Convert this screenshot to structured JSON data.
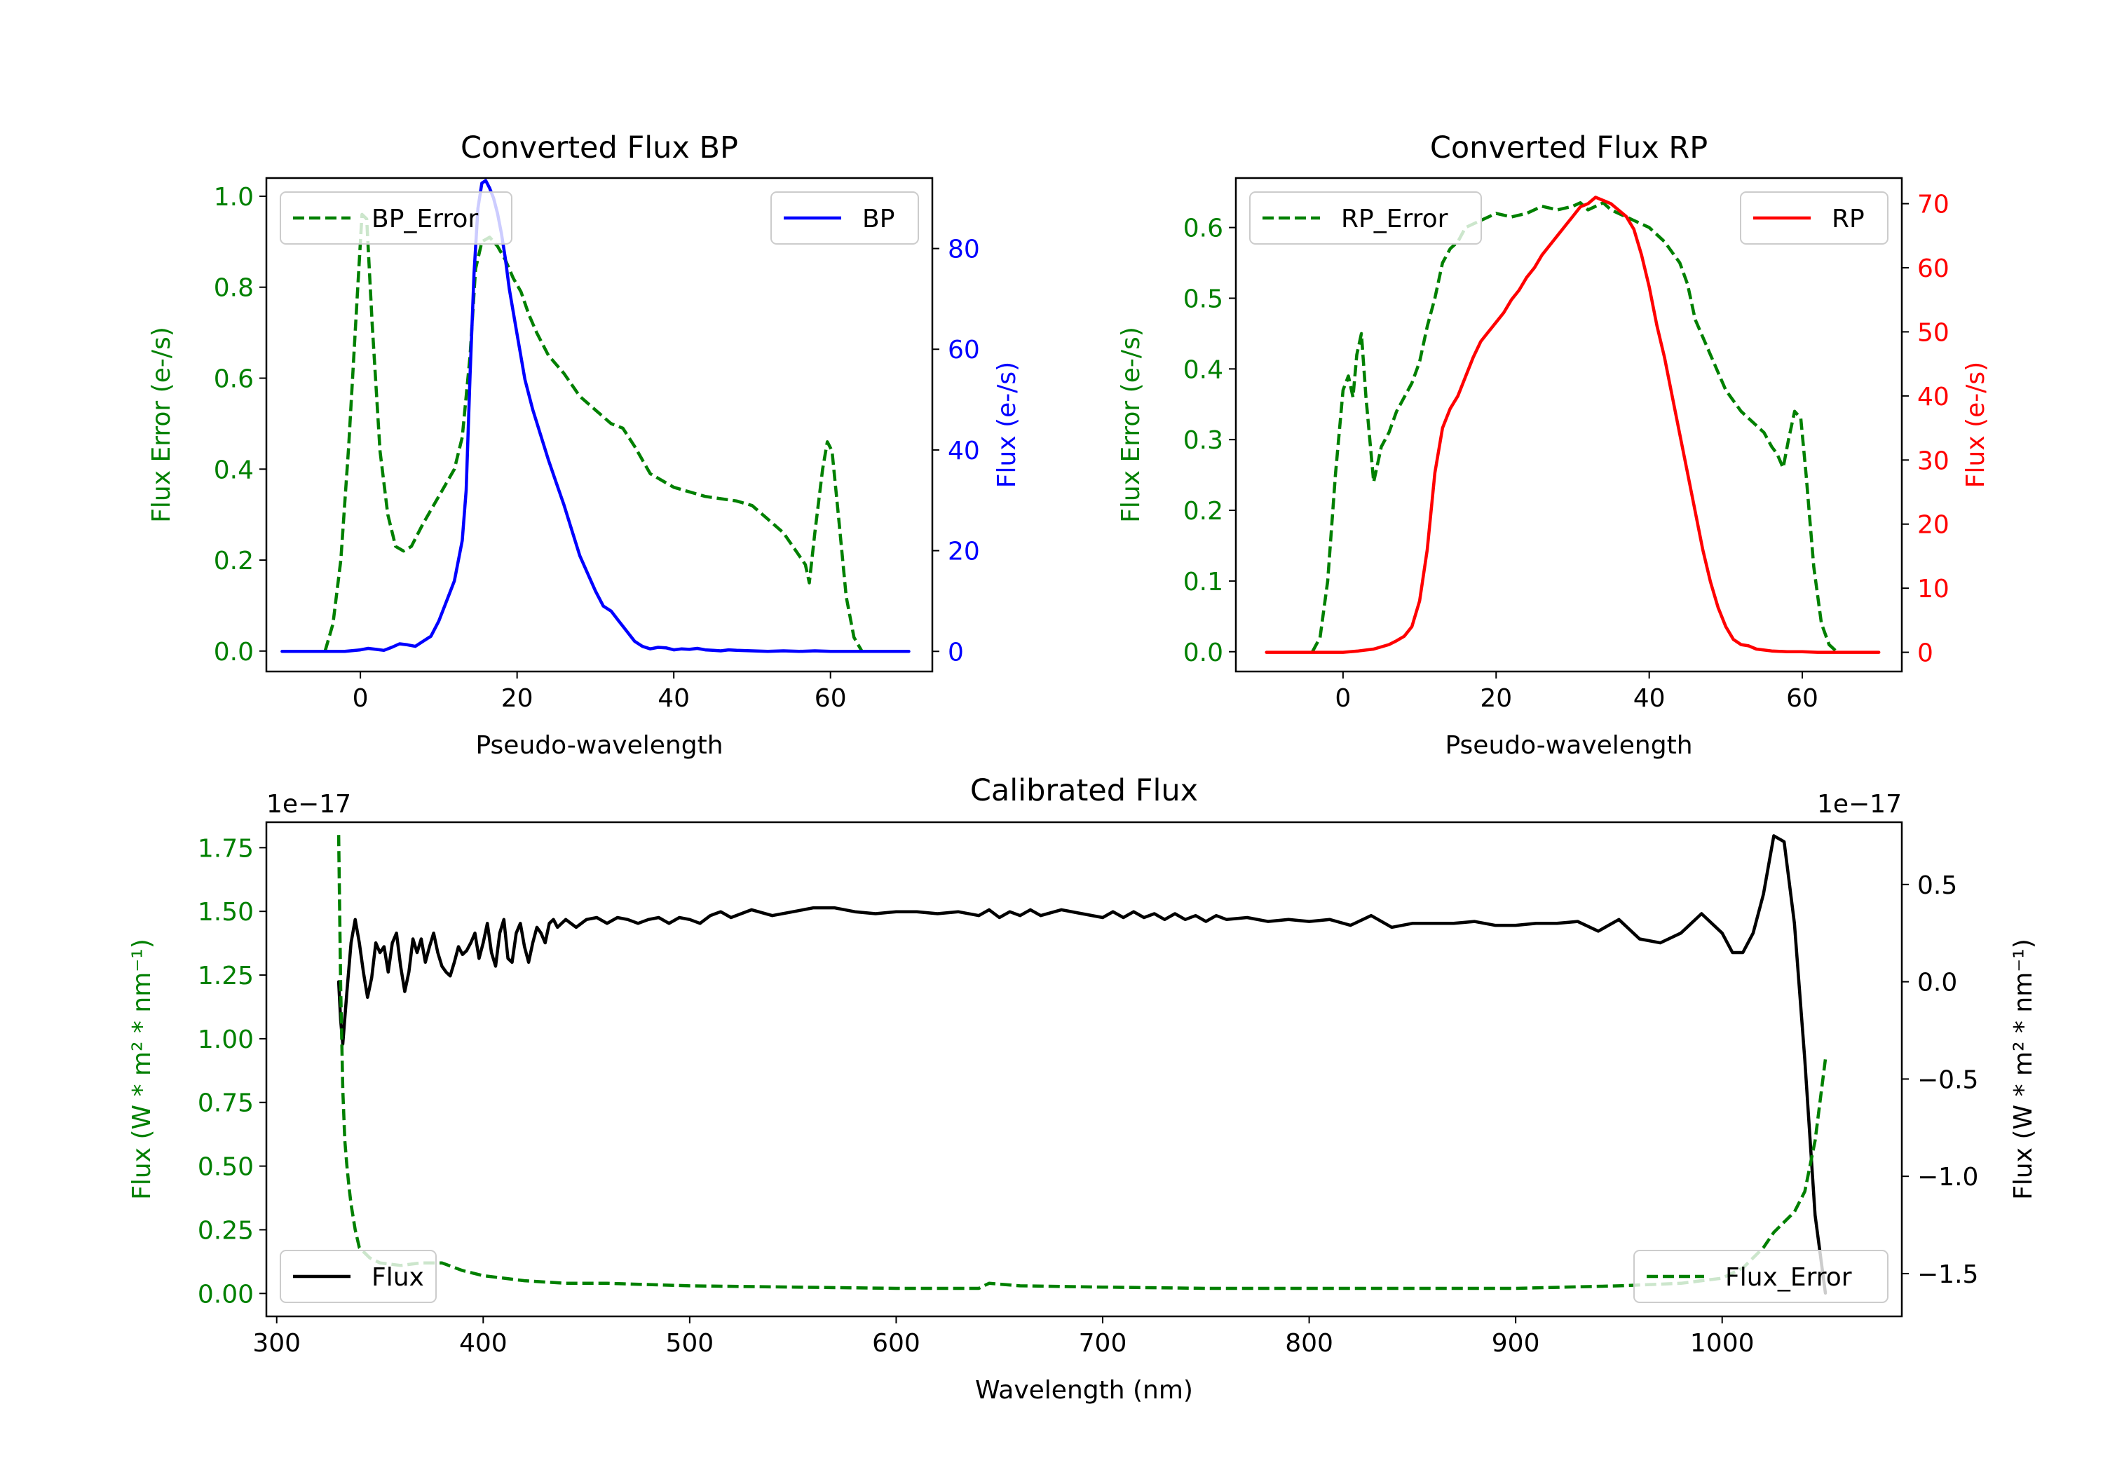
{
  "colors": {
    "green": "#008000",
    "blue": "#0000ff",
    "red": "#ff0000",
    "black": "#000000"
  },
  "chart_data": [
    {
      "type": "line",
      "title": "Converted Flux BP",
      "xlabel": "Pseudo-wavelength",
      "xlim": [
        -12,
        73
      ],
      "x_ticks": [
        0,
        20,
        40,
        60
      ],
      "left_axis": {
        "label": "Flux Error (e-/s)",
        "color": "#008000",
        "ylim": [
          -0.045,
          1.04
        ],
        "ticks": [
          "0.0",
          "0.2",
          "0.4",
          "0.6",
          "0.8",
          "1.0"
        ]
      },
      "right_axis": {
        "label": "Flux (e-/s)",
        "color": "#0000ff",
        "ylim": [
          -4,
          94
        ],
        "ticks": [
          "0",
          "20",
          "40",
          "60",
          "80"
        ]
      },
      "series": [
        {
          "name": "BP_Error",
          "axis": "left",
          "style": "dashed",
          "color": "#008000",
          "x": [
            -4.5,
            -3.5,
            -2.5,
            -1.5,
            -0.5,
            0.2,
            0.8,
            1.5,
            2.5,
            3.5,
            4.5,
            5.5,
            6.5,
            8,
            10,
            12,
            13,
            14,
            14.7,
            15.5,
            16.5,
            17.5,
            18.5,
            19.5,
            20.5,
            21.5,
            22.5,
            24,
            26,
            28,
            30,
            32,
            33.5,
            35,
            37,
            40,
            44,
            48,
            50,
            52,
            54,
            56,
            56.8,
            57.3,
            58,
            59,
            59.6,
            60.2,
            61,
            62,
            63,
            64
          ],
          "values": [
            0.0,
            0.06,
            0.2,
            0.45,
            0.75,
            0.96,
            0.95,
            0.72,
            0.44,
            0.3,
            0.23,
            0.22,
            0.23,
            0.28,
            0.34,
            0.4,
            0.47,
            0.65,
            0.84,
            0.9,
            0.91,
            0.89,
            0.86,
            0.82,
            0.79,
            0.74,
            0.7,
            0.65,
            0.61,
            0.56,
            0.53,
            0.5,
            0.49,
            0.45,
            0.39,
            0.36,
            0.34,
            0.33,
            0.32,
            0.29,
            0.26,
            0.21,
            0.19,
            0.15,
            0.26,
            0.4,
            0.46,
            0.44,
            0.3,
            0.12,
            0.03,
            0.0
          ]
        },
        {
          "name": "BP",
          "axis": "right",
          "style": "solid",
          "color": "#0000ff",
          "x": [
            -10,
            -5,
            -2,
            0,
            1,
            2,
            3,
            4,
            5,
            6,
            7,
            8,
            9,
            10,
            11,
            12,
            13,
            13.5,
            14,
            14.5,
            15,
            15.5,
            16,
            16.5,
            17,
            17.5,
            18,
            18.5,
            19,
            20,
            21,
            22,
            23,
            24,
            25,
            26,
            27,
            28,
            29,
            30,
            31,
            32,
            33,
            34,
            35,
            36,
            37,
            38,
            39,
            40,
            41,
            42,
            43,
            44,
            45,
            46,
            47,
            48,
            50,
            52,
            54,
            56,
            58,
            60,
            62,
            65,
            70
          ],
          "values": [
            0,
            0,
            0,
            0.3,
            0.6,
            0.4,
            0.2,
            0.8,
            1.5,
            1.3,
            1.0,
            2.0,
            3.0,
            6.0,
            10.0,
            14.0,
            22.0,
            32.0,
            55.0,
            75.0,
            88.0,
            93.0,
            93.5,
            92.0,
            90.0,
            87.0,
            83.0,
            78.0,
            72.0,
            63.0,
            54.0,
            48.0,
            43.0,
            38.0,
            33.5,
            29.0,
            24.0,
            19.0,
            15.5,
            12.0,
            9.0,
            8.0,
            6.0,
            4.0,
            2.0,
            1.0,
            0.5,
            0.8,
            0.7,
            0.3,
            0.5,
            0.4,
            0.6,
            0.3,
            0.2,
            0.1,
            0.3,
            0.2,
            0.1,
            0,
            0.1,
            0,
            0.1,
            0,
            0,
            0,
            0
          ]
        }
      ],
      "legends": [
        {
          "label": "BP_Error",
          "position": "upper left"
        },
        {
          "label": "BP",
          "position": "upper right"
        }
      ]
    },
    {
      "type": "line",
      "title": "Converted Flux RP",
      "xlabel": "Pseudo-wavelength",
      "xlim": [
        -14,
        73
      ],
      "x_ticks": [
        0,
        20,
        40,
        60
      ],
      "left_axis": {
        "label": "Flux Error (e-/s)",
        "color": "#008000",
        "ylim": [
          -0.028,
          0.67
        ],
        "ticks": [
          "0.0",
          "0.1",
          "0.2",
          "0.3",
          "0.4",
          "0.5",
          "0.6"
        ]
      },
      "right_axis": {
        "label": "Flux (e-/s)",
        "color": "#ff0000",
        "ylim": [
          -3,
          74
        ],
        "ticks": [
          "0",
          "10",
          "20",
          "30",
          "40",
          "50",
          "60",
          "70"
        ]
      },
      "series": [
        {
          "name": "RP_Error",
          "axis": "right_style_placeholder",
          "style": "dashed",
          "color": "#008000",
          "x": [
            -4,
            -3,
            -2,
            -1,
            0,
            0.7,
            1.3,
            1.8,
            2.4,
            3.0,
            3.5,
            4.0,
            5,
            6,
            7,
            8,
            9,
            10,
            11,
            12,
            13,
            14,
            15,
            16,
            18,
            20,
            22,
            24,
            26,
            28,
            30,
            31,
            32,
            33,
            34,
            35,
            36,
            38,
            40,
            42,
            44,
            45,
            46,
            48,
            50,
            52,
            54,
            55,
            56,
            56.7,
            57.5,
            58.2,
            59,
            59.8,
            60.5,
            61.5,
            62.5,
            63.5,
            64.5
          ],
          "values": [
            0.0,
            0.02,
            0.1,
            0.25,
            0.37,
            0.39,
            0.36,
            0.42,
            0.45,
            0.36,
            0.3,
            0.24,
            0.29,
            0.31,
            0.34,
            0.36,
            0.38,
            0.41,
            0.46,
            0.5,
            0.55,
            0.57,
            0.58,
            0.6,
            0.61,
            0.62,
            0.615,
            0.62,
            0.63,
            0.625,
            0.63,
            0.635,
            0.625,
            0.63,
            0.635,
            0.625,
            0.62,
            0.61,
            0.6,
            0.58,
            0.55,
            0.52,
            0.47,
            0.42,
            0.37,
            0.34,
            0.32,
            0.31,
            0.29,
            0.28,
            0.26,
            0.3,
            0.34,
            0.33,
            0.25,
            0.12,
            0.04,
            0.01,
            0.0
          ]
        },
        {
          "name": "RP",
          "axis": "right",
          "style": "solid",
          "color": "#ff0000",
          "x": [
            -10,
            -5,
            -2,
            0,
            2,
            4,
            6,
            7,
            8,
            9,
            10,
            11,
            12,
            13,
            14,
            15,
            16,
            17,
            18,
            19,
            20,
            21,
            22,
            23,
            24,
            25,
            26,
            27,
            28,
            29,
            30,
            31,
            32,
            33,
            34,
            35,
            36,
            37,
            38,
            39,
            40,
            41,
            42,
            43,
            44,
            45,
            46,
            47,
            48,
            49,
            50,
            51,
            52,
            53,
            54,
            56,
            58,
            60,
            62,
            65,
            70
          ],
          "values": [
            0,
            0,
            0,
            0,
            0.2,
            0.5,
            1.2,
            1.8,
            2.5,
            4.0,
            8.0,
            16.0,
            28.0,
            35.0,
            38.0,
            40.0,
            43.0,
            46.0,
            48.5,
            50.0,
            51.5,
            53.0,
            55.0,
            56.5,
            58.5,
            60.0,
            62.0,
            63.5,
            65.0,
            66.5,
            68.0,
            69.5,
            70.0,
            71.0,
            70.5,
            70.0,
            69.0,
            68.0,
            66.0,
            62.0,
            57.0,
            51.0,
            46.0,
            40.0,
            34.0,
            28.0,
            22.0,
            16.0,
            11.0,
            7.0,
            4.0,
            2.0,
            1.2,
            1.0,
            0.5,
            0.2,
            0.1,
            0.1,
            0,
            0,
            0
          ]
        }
      ],
      "legends": [
        {
          "label": "RP_Error",
          "position": "upper left"
        },
        {
          "label": "RP",
          "position": "upper right"
        }
      ]
    },
    {
      "type": "line",
      "title": "Calibrated Flux",
      "xlabel": "Wavelength (nm)",
      "xlim": [
        295,
        1087
      ],
      "x_ticks": [
        300,
        400,
        500,
        600,
        700,
        800,
        900,
        1000
      ],
      "left_axis": {
        "label": "Flux (W * m² * nm⁻¹)",
        "color": "#008000",
        "ylim": [
          -0.09,
          1.85
        ],
        "ticks": [
          "0.00",
          "0.25",
          "0.50",
          "0.75",
          "1.00",
          "1.25",
          "1.50",
          "1.75"
        ],
        "offset_text": "1e−17"
      },
      "right_axis": {
        "label": "Flux (W * m² * nm⁻¹)",
        "color": "#000000",
        "ylim": [
          -1.72,
          0.82
        ],
        "ticks": [
          "−1.5",
          "−1.0",
          "−0.5",
          "0.0",
          "0.5"
        ],
        "offset_text": "1e−17"
      },
      "series": [
        {
          "name": "Flux",
          "axis": "right",
          "style": "solid",
          "color": "#000000",
          "x": [
            330,
            331,
            332,
            334,
            336,
            338,
            340,
            342,
            344,
            346,
            348,
            350,
            352,
            354,
            356,
            358,
            360,
            362,
            364,
            366,
            368,
            370,
            372,
            374,
            376,
            378,
            380,
            382,
            384,
            386,
            388,
            390,
            392,
            394,
            396,
            398,
            400,
            402,
            404,
            406,
            408,
            410,
            412,
            414,
            416,
            418,
            420,
            422,
            424,
            426,
            428,
            430,
            432,
            434,
            436,
            438,
            440,
            445,
            450,
            455,
            460,
            465,
            470,
            475,
            480,
            485,
            490,
            495,
            500,
            505,
            510,
            515,
            520,
            530,
            540,
            550,
            560,
            570,
            580,
            590,
            600,
            610,
            620,
            630,
            640,
            645,
            650,
            655,
            660,
            665,
            670,
            680,
            690,
            700,
            705,
            710,
            715,
            720,
            725,
            730,
            735,
            740,
            745,
            750,
            755,
            760,
            770,
            780,
            790,
            800,
            810,
            820,
            830,
            840,
            850,
            860,
            870,
            880,
            890,
            900,
            910,
            920,
            930,
            940,
            950,
            960,
            970,
            980,
            990,
            1000,
            1005,
            1010,
            1015,
            1020,
            1025,
            1030,
            1035,
            1040,
            1045,
            1050
          ],
          "values": [
            0.0,
            -0.2,
            -0.32,
            -0.05,
            0.2,
            0.32,
            0.2,
            0.05,
            -0.08,
            0.02,
            0.2,
            0.15,
            0.18,
            0.05,
            0.2,
            0.25,
            0.08,
            -0.05,
            0.05,
            0.22,
            0.15,
            0.22,
            0.1,
            0.18,
            0.25,
            0.15,
            0.08,
            0.05,
            0.03,
            0.1,
            0.18,
            0.14,
            0.16,
            0.2,
            0.25,
            0.12,
            0.2,
            0.3,
            0.15,
            0.08,
            0.25,
            0.32,
            0.12,
            0.1,
            0.25,
            0.3,
            0.18,
            0.1,
            0.2,
            0.28,
            0.25,
            0.2,
            0.3,
            0.32,
            0.28,
            0.3,
            0.32,
            0.28,
            0.32,
            0.33,
            0.3,
            0.33,
            0.32,
            0.3,
            0.32,
            0.33,
            0.3,
            0.33,
            0.32,
            0.3,
            0.34,
            0.36,
            0.33,
            0.37,
            0.34,
            0.36,
            0.38,
            0.38,
            0.36,
            0.35,
            0.36,
            0.36,
            0.35,
            0.36,
            0.34,
            0.37,
            0.33,
            0.36,
            0.34,
            0.37,
            0.34,
            0.37,
            0.35,
            0.33,
            0.36,
            0.33,
            0.36,
            0.33,
            0.35,
            0.32,
            0.35,
            0.32,
            0.34,
            0.31,
            0.34,
            0.32,
            0.33,
            0.31,
            0.32,
            0.31,
            0.32,
            0.29,
            0.34,
            0.28,
            0.3,
            0.3,
            0.3,
            0.31,
            0.29,
            0.29,
            0.3,
            0.3,
            0.31,
            0.26,
            0.32,
            0.22,
            0.2,
            0.25,
            0.35,
            0.25,
            0.15,
            0.15,
            0.25,
            0.45,
            0.75,
            0.72,
            0.3,
            -0.4,
            -1.2,
            -1.6
          ]
        },
        {
          "name": "Flux_Error",
          "axis": "left",
          "style": "dashed",
          "color": "#008000",
          "x": [
            330,
            331,
            332,
            333,
            334,
            335,
            336,
            338,
            340,
            345,
            350,
            360,
            370,
            380,
            390,
            400,
            410,
            420,
            440,
            460,
            500,
            550,
            600,
            620,
            640,
            645,
            660,
            700,
            750,
            800,
            850,
            900,
            950,
            980,
            1000,
            1010,
            1020,
            1025,
            1030,
            1035,
            1040,
            1045,
            1050
          ],
          "values": [
            1.8,
            1.2,
            0.8,
            0.6,
            0.5,
            0.42,
            0.35,
            0.25,
            0.18,
            0.14,
            0.12,
            0.11,
            0.12,
            0.12,
            0.09,
            0.07,
            0.06,
            0.05,
            0.04,
            0.04,
            0.03,
            0.025,
            0.02,
            0.02,
            0.02,
            0.04,
            0.03,
            0.025,
            0.02,
            0.02,
            0.02,
            0.02,
            0.03,
            0.04,
            0.06,
            0.1,
            0.18,
            0.24,
            0.28,
            0.32,
            0.4,
            0.6,
            0.92
          ]
        }
      ],
      "legends": [
        {
          "label": "Flux",
          "position": "lower left"
        },
        {
          "label": "Flux_Error",
          "position": "lower right"
        }
      ]
    }
  ]
}
